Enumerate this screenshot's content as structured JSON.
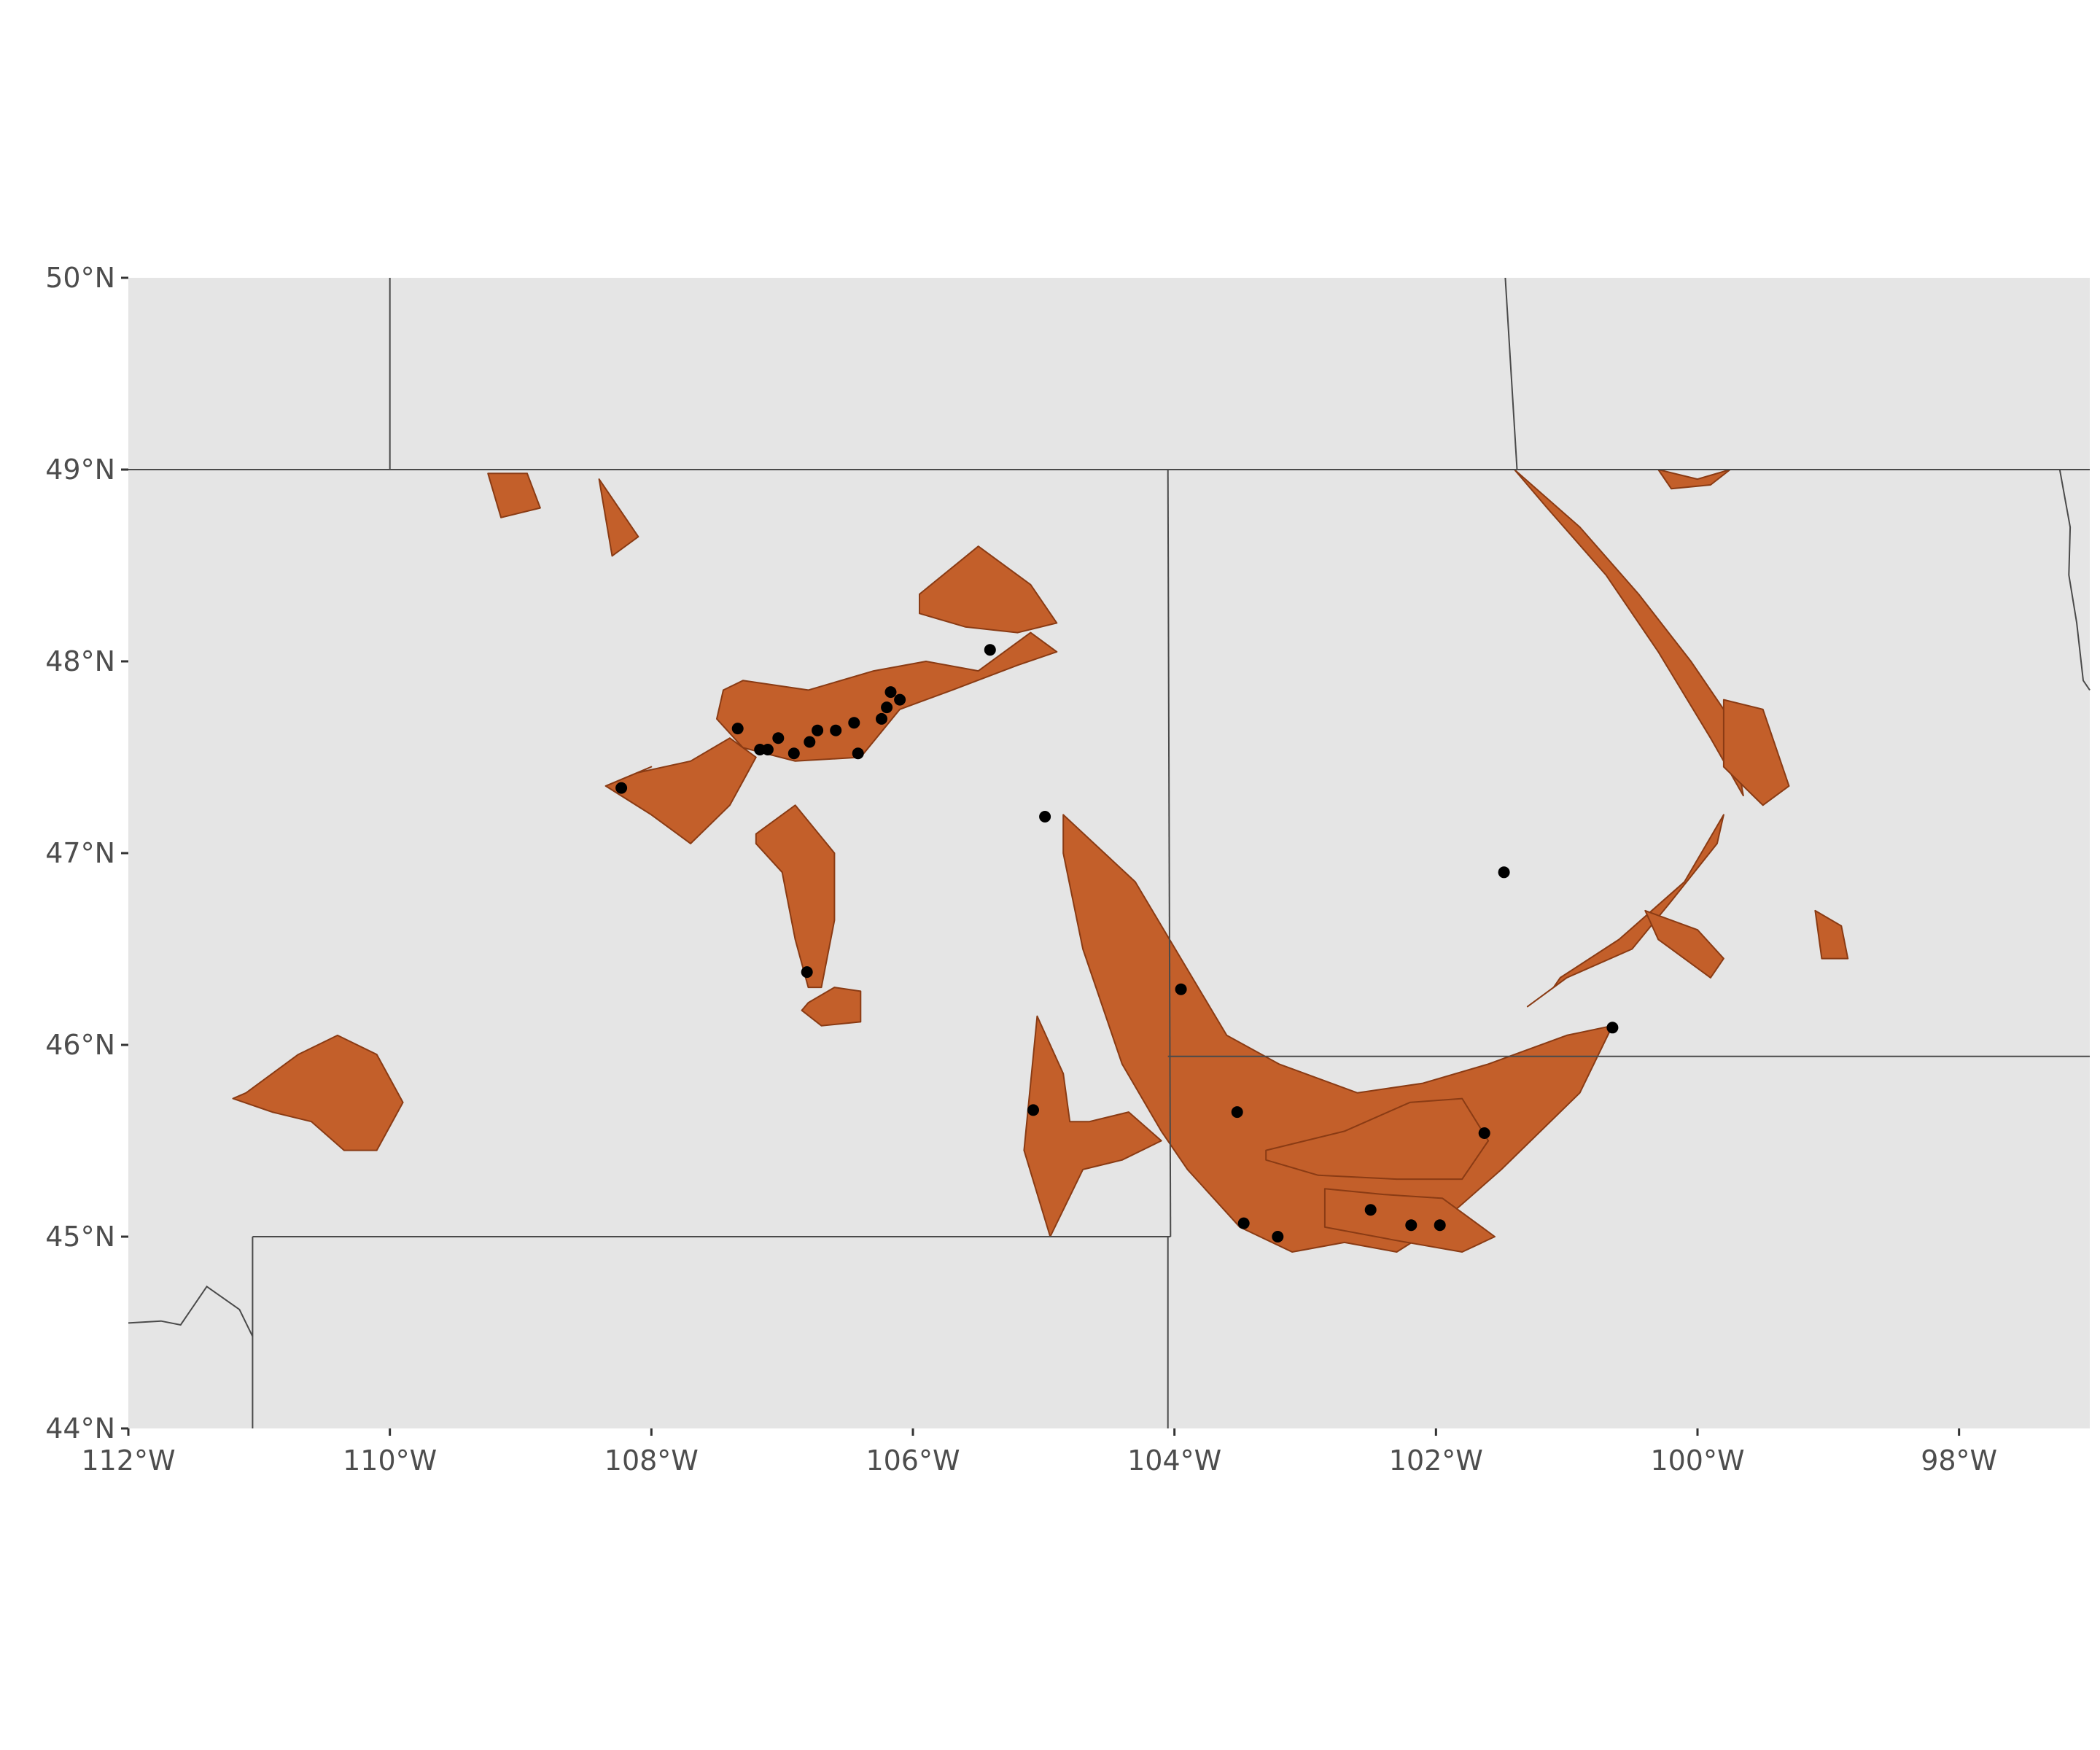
{
  "chart_data": {
    "type": "map",
    "projection": "longitude-latitude",
    "xlim": [
      -112,
      -97
    ],
    "ylim": [
      44,
      50
    ],
    "x_ticks": [
      {
        "value": -112,
        "label": "112°W"
      },
      {
        "value": -110,
        "label": "110°W"
      },
      {
        "value": -108,
        "label": "108°W"
      },
      {
        "value": -106,
        "label": "106°W"
      },
      {
        "value": -104,
        "label": "104°W"
      },
      {
        "value": -102,
        "label": "102°W"
      },
      {
        "value": -100,
        "label": "100°W"
      },
      {
        "value": -98,
        "label": "98°W"
      }
    ],
    "y_ticks": [
      {
        "value": 50,
        "label": "50°N"
      },
      {
        "value": 49,
        "label": "49°N"
      },
      {
        "value": 48,
        "label": "48°N"
      },
      {
        "value": 47,
        "label": "47°N"
      },
      {
        "value": 46,
        "label": "46°N"
      },
      {
        "value": 45,
        "label": "45°N"
      },
      {
        "value": 44,
        "label": "44°N"
      }
    ],
    "colors": {
      "panel_background": "#e5e5e5",
      "formation_fill": "#c35f2a",
      "formation_edge": "#8a3b14",
      "border_line": "#4a4a4a",
      "point": "#000000",
      "tick_text": "#4d4d4d"
    },
    "borders": [
      {
        "lon": [
          -112,
          -97
        ],
        "lat": [
          49,
          49
        ]
      },
      {
        "lon": [
          -110,
          -110
        ],
        "lat": [
          49,
          50
        ]
      },
      {
        "lon": [
          -101.47,
          -101.38
        ],
        "lat": [
          50,
          49
        ]
      },
      {
        "lon": [
          -104.05,
          -104.03
        ],
        "lat": [
          49,
          45
        ]
      },
      {
        "lon": [
          -111.05,
          -104.03
        ],
        "lat": [
          45,
          45
        ]
      },
      {
        "lon": [
          -111.05,
          -111.05
        ],
        "lat": [
          45,
          44
        ]
      },
      {
        "lon": [
          -104.05,
          -104.05
        ],
        "lat": [
          45,
          44
        ]
      },
      {
        "lon": [
          -104.05,
          -97
        ],
        "lat": [
          45.94,
          45.94
        ]
      },
      {
        "lon": [
          -112,
          -111.75,
          -111.6,
          -111.4,
          -111.15,
          -111.05
        ],
        "lat": [
          44.55,
          44.56,
          44.54,
          44.74,
          44.62,
          44.48
        ]
      },
      {
        "lon": [
          -97.23,
          -97.15,
          -97.16,
          -97.1,
          -97.05,
          -97
        ],
        "lat": [
          49,
          48.7,
          48.45,
          48.2,
          47.9,
          47.85
        ]
      }
    ],
    "formations": [
      {
        "lon": [
          -107.3,
          -106.8,
          -106.3,
          -105.9,
          -105.5,
          -105.1,
          -104.9,
          -105.2,
          -105.7,
          -106.1,
          -106.4,
          -106.9,
          -107.3,
          -107.5,
          -107.45
        ],
        "lat": [
          47.9,
          47.85,
          47.95,
          48.0,
          47.95,
          48.15,
          48.05,
          47.98,
          47.85,
          47.75,
          47.5,
          47.48,
          47.55,
          47.7,
          47.85
        ]
      },
      {
        "lon": [
          -105.95,
          -105.5,
          -105.1,
          -104.9,
          -105.2,
          -105.6,
          -105.95
        ],
        "lat": [
          48.35,
          48.6,
          48.4,
          48.2,
          48.15,
          48.18,
          48.25
        ]
      },
      {
        "lon": [
          -108.1,
          -107.7,
          -107.4,
          -107.2,
          -107.4,
          -107.7,
          -108.0,
          -108.35,
          -108.0
        ],
        "lat": [
          47.42,
          47.48,
          47.6,
          47.5,
          47.25,
          47.05,
          47.2,
          47.35,
          47.45
        ]
      },
      {
        "lon": [
          -107.2,
          -106.9,
          -106.6,
          -106.6,
          -106.7,
          -106.8,
          -106.9,
          -107.0,
          -107.2
        ],
        "lat": [
          47.1,
          47.25,
          47.0,
          46.65,
          46.3,
          46.3,
          46.55,
          46.9,
          47.05
        ]
      },
      {
        "lon": [
          -106.8,
          -106.6,
          -106.4,
          -106.4,
          -106.7,
          -106.85
        ],
        "lat": [
          46.22,
          46.3,
          46.28,
          46.12,
          46.1,
          46.18
        ]
      },
      {
        "lon": [
          -104.85,
          -104.3,
          -103.95,
          -103.6,
          -103.2,
          -102.6,
          -102.1,
          -101.6,
          -101.0,
          -100.65,
          -100.9,
          -101.5,
          -102.0,
          -102.3,
          -102.7,
          -103.1,
          -103.5,
          -103.9,
          -104.1,
          -104.4,
          -104.7,
          -104.85
        ],
        "lat": [
          47.2,
          46.85,
          46.45,
          46.05,
          45.9,
          45.75,
          45.8,
          45.9,
          46.05,
          46.1,
          45.75,
          45.35,
          45.05,
          44.92,
          44.97,
          44.92,
          45.05,
          45.35,
          45.55,
          45.9,
          46.5,
          47.0
        ]
      },
      {
        "lon": [
          -103.3,
          -102.7,
          -102.2,
          -101.8,
          -101.6,
          -101.8,
          -102.3,
          -102.9,
          -103.3
        ],
        "lat": [
          45.45,
          45.55,
          45.7,
          45.72,
          45.5,
          45.3,
          45.3,
          45.32,
          45.4
        ]
      },
      {
        "lon": [
          -102.85,
          -102.4,
          -101.95,
          -101.55,
          -101.8,
          -102.3,
          -102.85
        ],
        "lat": [
          45.25,
          45.22,
          45.2,
          45.0,
          44.92,
          44.98,
          45.05
        ]
      },
      {
        "lon": [
          -101.05,
          -100.6,
          -100.1,
          -99.8,
          -99.85,
          -100.2,
          -100.5,
          -101.0,
          -101.3,
          -101.1
        ],
        "lat": [
          46.35,
          46.55,
          46.85,
          47.2,
          47.05,
          46.75,
          46.5,
          46.35,
          46.2,
          46.3
        ]
      },
      {
        "lon": [
          -101.4,
          -100.9,
          -100.45,
          -100.05,
          -99.75,
          -99.65,
          -99.9,
          -100.3,
          -100.7,
          -101.15
        ],
        "lat": [
          49.0,
          48.7,
          48.35,
          48.0,
          47.7,
          47.3,
          47.6,
          48.05,
          48.45,
          48.8
        ]
      },
      {
        "lon": [
          -99.8,
          -99.5,
          -99.3,
          -99.5,
          -99.8
        ],
        "lat": [
          47.8,
          47.75,
          47.35,
          47.25,
          47.45
        ]
      },
      {
        "lon": [
          -100.3,
          -100.0,
          -99.75,
          -99.9,
          -100.2
        ],
        "lat": [
          49.0,
          48.95,
          49.0,
          48.92,
          48.9
        ]
      },
      {
        "lon": [
          -100.4,
          -100.0,
          -99.8,
          -99.9,
          -100.3
        ],
        "lat": [
          46.7,
          46.6,
          46.45,
          46.35,
          46.55
        ]
      },
      {
        "lon": [
          -99.1,
          -98.9,
          -98.85,
          -99.05
        ],
        "lat": [
          46.7,
          46.62,
          46.45,
          46.45
        ]
      },
      {
        "lon": [
          -105.05,
          -104.85,
          -104.8,
          -104.65,
          -104.35,
          -104.1,
          -104.4,
          -104.7,
          -104.95,
          -105.15
        ],
        "lat": [
          46.15,
          45.85,
          45.6,
          45.6,
          45.65,
          45.5,
          45.4,
          45.35,
          45.0,
          45.45
        ]
      },
      {
        "lon": [
          -111.1,
          -110.7,
          -110.4,
          -110.1,
          -109.9,
          -110.1,
          -110.35,
          -110.6,
          -110.9,
          -111.2
        ],
        "lat": [
          45.75,
          45.95,
          46.05,
          45.95,
          45.7,
          45.45,
          45.45,
          45.6,
          45.65,
          45.72
        ]
      },
      {
        "lon": [
          -109.25,
          -108.95,
          -108.85,
          -109.15
        ],
        "lat": [
          48.98,
          48.98,
          48.8,
          48.75
        ]
      },
      {
        "lon": [
          -108.4,
          -108.1,
          -108.3
        ],
        "lat": [
          48.95,
          48.65,
          48.55
        ]
      }
    ],
    "points": [
      {
        "lon": -105.41,
        "lat": 48.06
      },
      {
        "lon": -107.34,
        "lat": 47.65
      },
      {
        "lon": -107.17,
        "lat": 47.54
      },
      {
        "lon": -107.11,
        "lat": 47.54
      },
      {
        "lon": -107.03,
        "lat": 47.6
      },
      {
        "lon": -106.91,
        "lat": 47.52
      },
      {
        "lon": -106.79,
        "lat": 47.58
      },
      {
        "lon": -106.73,
        "lat": 47.64
      },
      {
        "lon": -106.59,
        "lat": 47.64
      },
      {
        "lon": -106.45,
        "lat": 47.68
      },
      {
        "lon": -106.42,
        "lat": 47.52
      },
      {
        "lon": -106.24,
        "lat": 47.7
      },
      {
        "lon": -106.2,
        "lat": 47.76
      },
      {
        "lon": -106.17,
        "lat": 47.84
      },
      {
        "lon": -106.1,
        "lat": 47.8
      },
      {
        "lon": -108.23,
        "lat": 47.34
      },
      {
        "lon": -104.99,
        "lat": 47.19
      },
      {
        "lon": -106.81,
        "lat": 46.38
      },
      {
        "lon": -103.95,
        "lat": 46.29
      },
      {
        "lon": -105.08,
        "lat": 45.66
      },
      {
        "lon": -103.52,
        "lat": 45.65
      },
      {
        "lon": -101.63,
        "lat": 45.54
      },
      {
        "lon": -101.48,
        "lat": 46.9
      },
      {
        "lon": -100.65,
        "lat": 46.09
      },
      {
        "lon": -103.47,
        "lat": 45.07
      },
      {
        "lon": -103.21,
        "lat": 45.0
      },
      {
        "lon": -102.5,
        "lat": 45.14
      },
      {
        "lon": -102.19,
        "lat": 45.06
      },
      {
        "lon": -101.97,
        "lat": 45.06
      }
    ]
  }
}
